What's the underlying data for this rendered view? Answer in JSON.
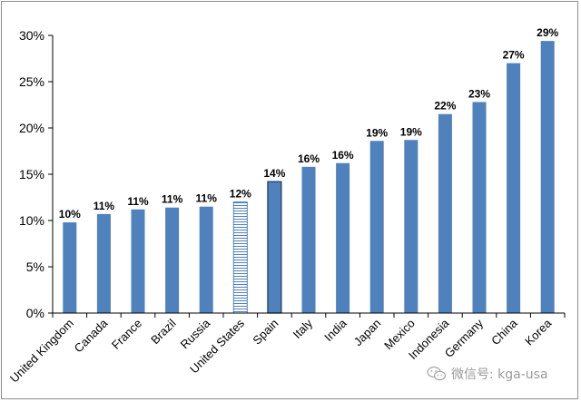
{
  "chart_data": {
    "type": "bar",
    "categories": [
      "United Kingdom",
      "Canada",
      "France",
      "Brazil",
      "Russia",
      "United States",
      "Spain",
      "Italy",
      "India",
      "Japan",
      "Mexico",
      "Indonesia",
      "Germany",
      "China",
      "Korea"
    ],
    "values": [
      9.8,
      10.7,
      11.2,
      11.4,
      11.5,
      12.0,
      14.2,
      15.8,
      16.2,
      18.6,
      18.7,
      21.5,
      22.8,
      27.0,
      29.4
    ],
    "data_labels": [
      "10%",
      "11%",
      "11%",
      "11%",
      "11%",
      "12%",
      "14%",
      "16%",
      "16%",
      "19%",
      "19%",
      "22%",
      "23%",
      "27%",
      "29%"
    ],
    "highlight": {
      "United States": "hatched",
      "Spain": "outlined"
    },
    "ylim": [
      0,
      30
    ],
    "yticks": [
      0,
      5,
      10,
      15,
      20,
      25,
      30
    ],
    "ytick_labels": [
      "0%",
      "5%",
      "10%",
      "15%",
      "20%",
      "25%",
      "30%"
    ],
    "title": "",
    "xlabel": "",
    "ylabel": "",
    "grid": false,
    "colors": {
      "bar": "#4f81bd",
      "outline": "#1f3864",
      "axis": "#000000"
    }
  },
  "watermark": {
    "text": "微信号: kga-usa",
    "icon": "wechat-icon"
  }
}
